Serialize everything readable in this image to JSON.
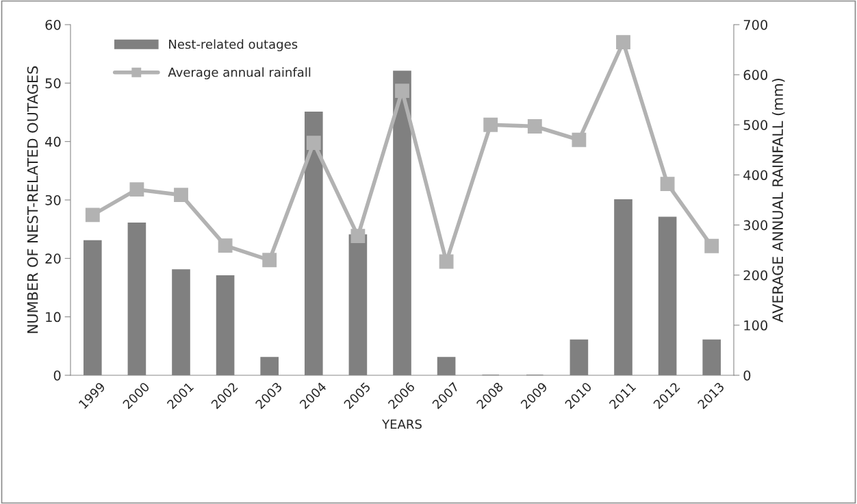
{
  "chart_data": {
    "type": "bar",
    "xlabel": "YEARS",
    "ylabel": "NUMBER OF NEST-RELATED OUTAGES",
    "y2label": "AVERAGE ANNUAL RAINFALL (mm)",
    "categories": [
      "1999",
      "2000",
      "2001",
      "2002",
      "2003",
      "2004",
      "2005",
      "2006",
      "2007",
      "2008",
      "2009",
      "2010",
      "2011",
      "2012",
      "2013"
    ],
    "series": [
      {
        "name": "Nest-related outages",
        "color": "#808080",
        "values": [
          23,
          26,
          18,
          17,
          3,
          45,
          24,
          52,
          3,
          0,
          0,
          6,
          30,
          27,
          6
        ]
      },
      {
        "name": "Average annual rainfall",
        "type": "line",
        "axis": "y2",
        "color": "#b2b2b2",
        "marker": "square",
        "values": [
          320,
          371,
          360,
          259,
          230,
          464,
          278,
          568,
          227,
          500,
          497,
          470,
          665,
          382,
          258
        ]
      }
    ],
    "ylim": [
      0,
      60
    ],
    "yticks": [
      0,
      10,
      20,
      30,
      40,
      50,
      60
    ],
    "y2lim": [
      0,
      700
    ],
    "y2ticks": [
      0,
      100,
      200,
      300,
      400,
      500,
      600,
      700
    ],
    "grid": false,
    "legend": "top left"
  }
}
